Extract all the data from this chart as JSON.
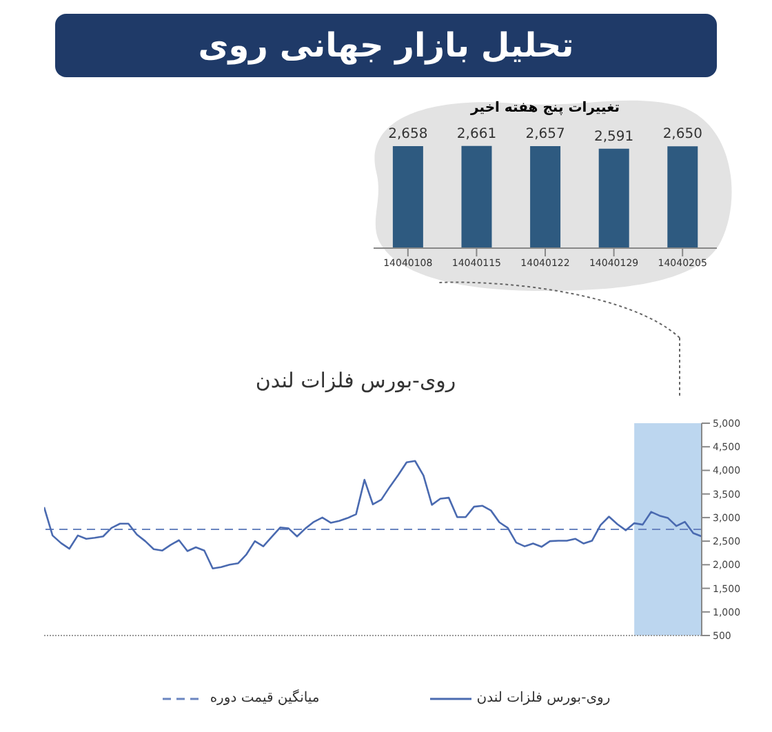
{
  "chart_data": [
    {
      "type": "other",
      "title": "تحلیل بازار جهانی روی"
    },
    {
      "type": "bar",
      "title": "تغییرات پنج هفته اخیر",
      "categories": [
        "14040108",
        "14040115",
        "14040122",
        "14040129",
        "14040205"
      ],
      "values": [
        2658,
        2661,
        2657,
        2591,
        2650
      ],
      "value_labels": [
        "2,658",
        "2,661",
        "2,657",
        "2,591",
        "2,650"
      ],
      "color": "#2e5a80",
      "tick_labels": "x",
      "grid": false
    },
    {
      "type": "line",
      "title": "روی-بورس فلزات لندن",
      "categories": [
        null,
        null,
        null,
        null,
        null,
        null,
        null,
        null,
        null,
        null,
        null,
        null,
        null,
        null,
        null,
        null,
        null,
        null,
        null,
        null,
        null,
        null,
        null,
        null,
        null,
        null,
        null,
        null,
        null,
        null,
        null,
        null,
        null,
        null,
        null,
        null,
        null,
        null,
        null,
        null,
        null,
        null,
        null,
        null,
        null,
        null,
        null,
        null,
        null,
        null,
        null,
        null,
        null,
        null,
        null,
        null,
        null,
        null,
        null,
        null,
        null,
        null,
        null,
        null,
        null,
        null,
        null,
        null,
        null,
        null,
        null,
        null,
        null,
        null,
        null,
        null,
        null,
        null,
        null
      ],
      "series": [
        {
          "name": "روی-بورس فلزات لندن",
          "color": "#4a6ab0",
          "values": [
            3220,
            2620,
            2460,
            2340,
            2620,
            2550,
            2570,
            2600,
            2780,
            2870,
            2870,
            2640,
            2500,
            2330,
            2300,
            2420,
            2520,
            2290,
            2370,
            2300,
            1920,
            1950,
            2000,
            2030,
            2220,
            2500,
            2390,
            2590,
            2790,
            2770,
            2600,
            2770,
            2910,
            3000,
            2890,
            2930,
            2990,
            3070,
            3800,
            3280,
            3380,
            3650,
            3900,
            4170,
            4200,
            3890,
            3270,
            3400,
            3420,
            3010,
            3010,
            3230,
            3250,
            3150,
            2900,
            2780,
            2470,
            2390,
            2450,
            2380,
            2500,
            2510,
            2510,
            2550,
            2450,
            2510,
            2840,
            3020,
            2860,
            2730,
            2880,
            2850,
            3120,
            3040,
            2990,
            2820,
            2910,
            2670,
            2600
          ]
        }
      ],
      "ylim": [
        500,
        5000
      ],
      "yticks": [
        {
          "value": 500,
          "label": "500"
        },
        {
          "value": 1000,
          "label": "1,000"
        },
        {
          "value": 1500,
          "label": "1,500"
        },
        {
          "value": 2000,
          "label": "2,000"
        },
        {
          "value": 2500,
          "label": "2,500"
        },
        {
          "value": 3000,
          "label": "3,000"
        },
        {
          "value": 3500,
          "label": "3,500"
        },
        {
          "value": 4000,
          "label": "4,000"
        },
        {
          "value": 4500,
          "label": "4,500"
        },
        {
          "value": 5000,
          "label": "5,000"
        }
      ],
      "ref_lines": [
        {
          "axis": "y",
          "value": 2750,
          "label": "میانگین قیمت دوره",
          "color": "#6a85c0",
          "line_style": "dashed"
        }
      ],
      "tick_labels": "y",
      "grid": false,
      "legend": "bottom",
      "marker": "none",
      "line_style": "solid"
    }
  ]
}
